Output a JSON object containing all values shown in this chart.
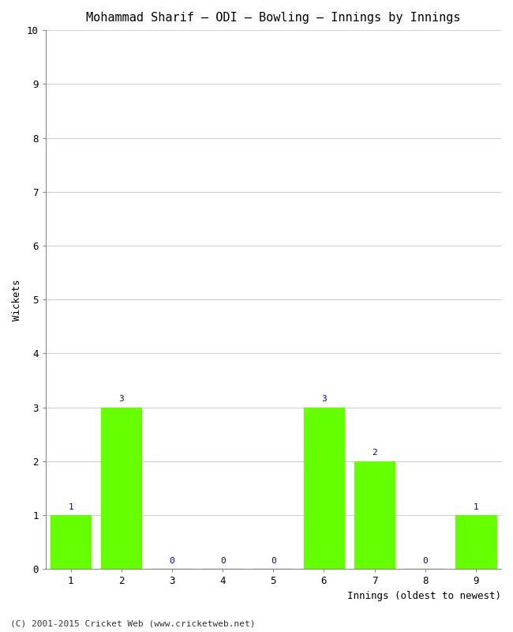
{
  "title": "Mohammad Sharif – ODI – Bowling – Innings by Innings",
  "xlabel": "Innings (oldest to newest)",
  "ylabel": "Wickets",
  "categories": [
    "1",
    "2",
    "3",
    "4",
    "5",
    "6",
    "7",
    "8",
    "9"
  ],
  "values": [
    1,
    3,
    0,
    0,
    0,
    3,
    2,
    0,
    1
  ],
  "bar_color": "#66ff00",
  "annotation_color": "#0000cc",
  "ylim": [
    0,
    10
  ],
  "yticks": [
    0,
    1,
    2,
    3,
    4,
    5,
    6,
    7,
    8,
    9,
    10
  ],
  "background_color": "#ffffff",
  "plot_bg_color": "#ffffff",
  "grid_color": "#d0d0d0",
  "footer": "(C) 2001-2015 Cricket Web (www.cricketweb.net)",
  "title_fontsize": 11,
  "axis_label_fontsize": 9,
  "tick_fontsize": 9,
  "annotation_fontsize": 8,
  "footer_fontsize": 8
}
